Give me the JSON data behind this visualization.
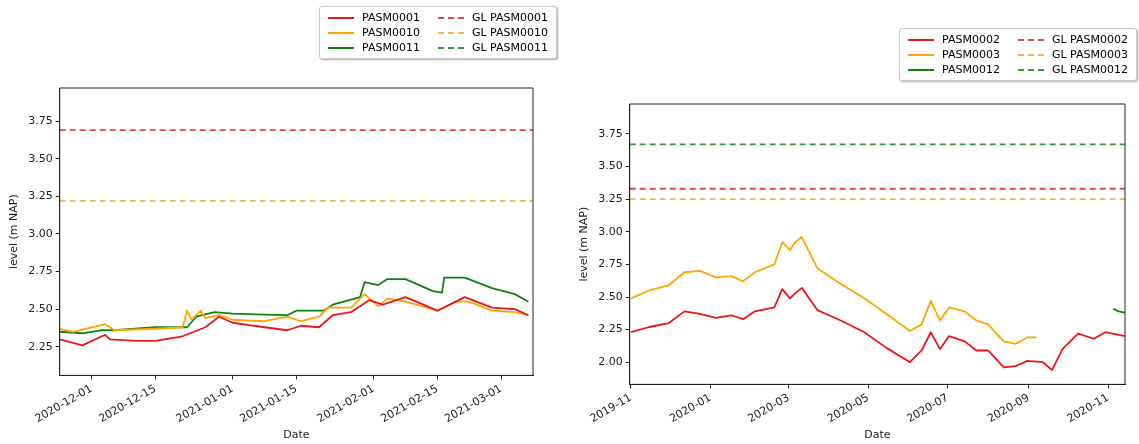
{
  "chart_data": [
    {
      "type": "line",
      "xlabel": "Date",
      "ylabel": "level (m NAP)",
      "legend": "top right",
      "marker": "none",
      "grid": false,
      "xlim": [
        "2020-11-24",
        "2021-03-08"
      ],
      "ylim": [
        2.06,
        3.97
      ],
      "xticks": [
        "2020-12-01",
        "2020-12-15",
        "2021-01-01",
        "2021-01-15",
        "2021-02-01",
        "2021-02-15",
        "2021-03-01"
      ],
      "yticks": [
        2.25,
        {
          "value": 2.5,
          "label": "2.50"
        },
        2.75,
        {
          "value": 3.0,
          "label": "3.00"
        },
        3.25,
        {
          "value": 3.5,
          "label": "3.50"
        },
        3.75
      ],
      "series": [
        {
          "name": "PASM0001",
          "color": "#e8171a",
          "line_style": "solid",
          "x": [
            "2020-11-24",
            "2020-11-29",
            "2020-12-04",
            "2020-12-05",
            "2020-12-11",
            "2020-12-15",
            "2020-12-21",
            "2020-12-26",
            "2020-12-29",
            "2021-01-01",
            "2021-01-08",
            "2021-01-13",
            "2021-01-16",
            "2021-01-20",
            "2021-01-23",
            "2021-01-27",
            "2021-01-31",
            "2021-02-03",
            "2021-02-08",
            "2021-02-15",
            "2021-02-21",
            "2021-02-27",
            "2021-03-04",
            "2021-03-07"
          ],
          "values": [
            2.3,
            2.26,
            2.33,
            2.3,
            2.29,
            2.29,
            2.32,
            2.38,
            2.45,
            2.41,
            2.38,
            2.36,
            2.39,
            2.38,
            2.46,
            2.48,
            2.56,
            2.53,
            2.58,
            2.49,
            2.58,
            2.51,
            2.5,
            2.46
          ]
        },
        {
          "name": "PASM0010",
          "color": "#ffa500",
          "line_style": "solid",
          "x": [
            "2020-11-24",
            "2020-11-27",
            "2020-12-04",
            "2020-12-06",
            "2020-12-15",
            "2020-12-21",
            "2020-12-22",
            "2020-12-23",
            "2020-12-25",
            "2020-12-26",
            "2020-12-29",
            "2021-01-01",
            "2021-01-08",
            "2021-01-13",
            "2021-01-16",
            "2021-01-20",
            "2021-01-22",
            "2021-01-27",
            "2021-01-30",
            "2021-02-02",
            "2021-02-04",
            "2021-02-08",
            "2021-02-15",
            "2021-02-19",
            "2021-02-22",
            "2021-02-27",
            "2021-03-04",
            "2021-03-07"
          ],
          "values": [
            2.37,
            2.35,
            2.4,
            2.36,
            2.37,
            2.38,
            2.49,
            2.43,
            2.49,
            2.44,
            2.46,
            2.43,
            2.42,
            2.45,
            2.42,
            2.45,
            2.51,
            2.51,
            2.6,
            2.52,
            2.57,
            2.55,
            2.49,
            2.55,
            2.55,
            2.49,
            2.48,
            2.46
          ]
        },
        {
          "name": "PASM0011",
          "color": "#108010",
          "line_style": "solid",
          "x": [
            "2020-11-24",
            "2020-11-29",
            "2020-12-03",
            "2020-12-06",
            "2020-12-15",
            "2020-12-22",
            "2020-12-24",
            "2020-12-28",
            "2021-01-01",
            "2021-01-13",
            "2021-01-15",
            "2021-01-21",
            "2021-01-23",
            "2021-01-29",
            "2021-01-30",
            "2021-02-02",
            "2021-02-04",
            "2021-02-08",
            "2021-02-14",
            "2021-02-16",
            "2021-02-16T12:00",
            "2021-02-21",
            "2021-02-27",
            "2021-03-04",
            "2021-03-07"
          ],
          "values": [
            2.35,
            2.34,
            2.36,
            2.36,
            2.38,
            2.38,
            2.45,
            2.48,
            2.47,
            2.46,
            2.49,
            2.49,
            2.53,
            2.58,
            2.68,
            2.66,
            2.7,
            2.7,
            2.62,
            2.61,
            2.71,
            2.71,
            2.64,
            2.6,
            2.55
          ]
        },
        {
          "name": "GL PASM0001",
          "color": "#e04848",
          "line_style": "dashed",
          "x": [
            "2020-11-24",
            "2021-03-08"
          ],
          "values": [
            3.69,
            3.69
          ]
        },
        {
          "name": "GL PASM0010",
          "color": "#f2b84a",
          "line_style": "dashed",
          "x": [
            "2020-11-24",
            "2021-03-08"
          ],
          "values": [
            3.22,
            3.22
          ]
        },
        {
          "name": "GL PASM0011",
          "color": "#3c963c",
          "line_style": "dashed"
        }
      ]
    },
    {
      "type": "line",
      "xlabel": "Date",
      "ylabel": "level (m NAP)",
      "legend": "top right",
      "marker": "none",
      "grid": false,
      "xlim": [
        "2019-10-31",
        "2020-11-14"
      ],
      "ylim": [
        1.83,
        3.98
      ],
      "xticks": [
        {
          "value": "2019-11-01",
          "label": "2019-11"
        },
        {
          "value": "2020-01-01",
          "label": "2020-01"
        },
        {
          "value": "2020-03-01",
          "label": "2020-03"
        },
        {
          "value": "2020-05-01",
          "label": "2020-05"
        },
        {
          "value": "2020-07-01",
          "label": "2020-07"
        },
        {
          "value": "2020-09-01",
          "label": "2020-09"
        },
        {
          "value": "2020-11-01",
          "label": "2020-11"
        }
      ],
      "yticks": [
        {
          "value": 2.0,
          "label": "2.00"
        },
        2.25,
        {
          "value": 2.5,
          "label": "2.50"
        },
        2.75,
        {
          "value": 3.0,
          "label": "3.00"
        },
        3.25,
        {
          "value": 3.5,
          "label": "3.50"
        },
        3.75
      ],
      "series": [
        {
          "name": "PASM0002",
          "color": "#e8171a",
          "line_style": "solid",
          "x": [
            "2019-11-01",
            "2019-11-15",
            "2019-11-30",
            "2019-12-12",
            "2019-12-24",
            "2020-01-05",
            "2020-01-17",
            "2020-01-26",
            "2020-02-04",
            "2020-02-19",
            "2020-02-25",
            "2020-03-02",
            "2020-03-06",
            "2020-03-11",
            "2020-03-23",
            "2020-04-10",
            "2020-04-28",
            "2020-05-15",
            "2020-06-02",
            "2020-06-11",
            "2020-06-18",
            "2020-06-25",
            "2020-07-02",
            "2020-07-14",
            "2020-07-23",
            "2020-08-01",
            "2020-08-13",
            "2020-08-22",
            "2020-08-31",
            "2020-09-12",
            "2020-09-19",
            "2020-09-27",
            "2020-10-09",
            "2020-10-21",
            "2020-10-30",
            "2020-11-14"
          ],
          "values": [
            2.23,
            2.27,
            2.3,
            2.39,
            2.37,
            2.34,
            2.36,
            2.33,
            2.39,
            2.42,
            2.56,
            2.49,
            2.53,
            2.57,
            2.4,
            2.32,
            2.23,
            2.11,
            2.0,
            2.09,
            2.23,
            2.1,
            2.2,
            2.16,
            2.09,
            2.09,
            1.96,
            1.97,
            2.01,
            2.0,
            1.94,
            2.1,
            2.22,
            2.18,
            2.23,
            2.2
          ]
        },
        {
          "name": "PASM0003",
          "color": "#ffa500",
          "line_style": "solid",
          "x": [
            "2019-11-01",
            "2019-11-15",
            "2019-11-30",
            "2019-12-12",
            "2019-12-24",
            "2020-01-05",
            "2020-01-17",
            "2020-01-26",
            "2020-02-04",
            "2020-02-19",
            "2020-02-25",
            "2020-03-02",
            "2020-03-06",
            "2020-03-11",
            "2020-03-23",
            "2020-04-10",
            "2020-04-28",
            "2020-05-15",
            "2020-06-02",
            "2020-06-11",
            "2020-06-18",
            "2020-06-25",
            "2020-07-02",
            "2020-07-14",
            "2020-07-23",
            "2020-08-01",
            "2020-08-13",
            "2020-08-22",
            "2020-08-31",
            "2020-09-07"
          ],
          "values": [
            2.49,
            2.55,
            2.59,
            2.69,
            2.7,
            2.65,
            2.66,
            2.62,
            2.69,
            2.75,
            2.92,
            2.86,
            2.92,
            2.96,
            2.72,
            2.6,
            2.49,
            2.37,
            2.24,
            2.29,
            2.47,
            2.32,
            2.42,
            2.39,
            2.32,
            2.29,
            2.16,
            2.14,
            2.19,
            2.19
          ]
        },
        {
          "name": "PASM0012",
          "color": "#108010",
          "line_style": "solid",
          "x": [
            "2020-11-05",
            "2020-11-09",
            "2020-11-14"
          ],
          "values": [
            2.41,
            2.39,
            2.38
          ]
        },
        {
          "name": "GL PASM0002",
          "color": "#e04848",
          "line_style": "dashed",
          "x": [
            "2019-10-31",
            "2020-11-14"
          ],
          "values": [
            3.33,
            3.33
          ]
        },
        {
          "name": "GL PASM0003",
          "color": "#f2b84a",
          "line_style": "dashed",
          "x": [
            "2019-10-31",
            "2020-11-14"
          ],
          "values": [
            3.25,
            3.25
          ]
        },
        {
          "name": "GL PASM0012",
          "color": "#3c963c",
          "line_style": "dashed",
          "x": [
            "2019-10-31",
            "2020-11-14"
          ],
          "values": [
            3.67,
            3.67
          ]
        }
      ]
    }
  ]
}
